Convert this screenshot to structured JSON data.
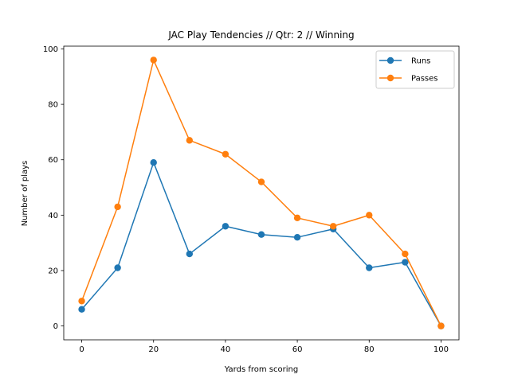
{
  "chart_data": {
    "type": "line",
    "title": "JAC Play Tendencies // Qtr: 2 // Winning",
    "xlabel": "Yards from scoring",
    "ylabel": "Number of plays",
    "xlim": [
      -5,
      105
    ],
    "ylim": [
      -5,
      101
    ],
    "xticks": [
      0,
      20,
      40,
      60,
      80,
      100
    ],
    "yticks": [
      0,
      20,
      40,
      60,
      80,
      100
    ],
    "x": [
      0,
      10,
      20,
      30,
      40,
      50,
      60,
      70,
      80,
      90,
      100
    ],
    "series": [
      {
        "name": "Runs",
        "color": "#1f77b4",
        "values": [
          6,
          21,
          59,
          26,
          36,
          33,
          32,
          35,
          21,
          23,
          0
        ]
      },
      {
        "name": "Passes",
        "color": "#ff7f0e",
        "values": [
          9,
          43,
          96,
          67,
          62,
          52,
          39,
          36,
          40,
          26,
          0
        ]
      }
    ],
    "legend_position": "top-right",
    "grid": false,
    "marker": "circle"
  }
}
